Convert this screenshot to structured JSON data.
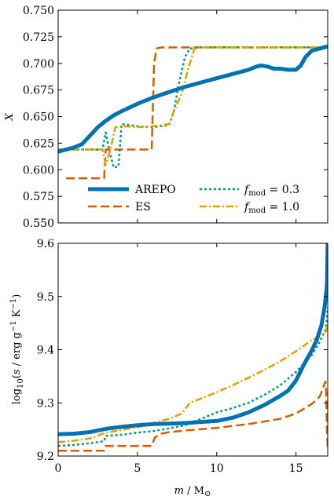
{
  "colors": {
    "arepo": "#0072B2",
    "es": "#D55E00",
    "fmod03": "#009E73",
    "fmod10": "#E69F00",
    "axes": "#000000"
  },
  "chart_data": [
    {
      "type": "line",
      "ylabel": "X",
      "xlim": [
        0,
        17
      ],
      "ylim": [
        0.55,
        0.75
      ],
      "yticks": [
        "0.550",
        "0.575",
        "0.600",
        "0.625",
        "0.650",
        "0.675",
        "0.700",
        "0.725",
        "0.750"
      ],
      "legend_position": "lower-left",
      "series": [
        {
          "name": "AREPO",
          "style": "solid",
          "color": "#0072B2",
          "x": [
            0,
            0.5,
            1,
            1.5,
            2,
            2.5,
            3,
            3.5,
            4,
            5,
            6,
            7,
            8,
            9,
            10,
            11,
            12,
            12.5,
            12.8,
            13.2,
            13.6,
            14,
            14.5,
            15,
            15.3,
            15.6,
            16,
            16.5,
            17
          ],
          "y": [
            0.617,
            0.619,
            0.621,
            0.624,
            0.632,
            0.64,
            0.646,
            0.651,
            0.655,
            0.662,
            0.668,
            0.673,
            0.678,
            0.682,
            0.686,
            0.69,
            0.694,
            0.697,
            0.698,
            0.697,
            0.695,
            0.695,
            0.694,
            0.694,
            0.698,
            0.706,
            0.712,
            0.714,
            0.716
          ]
        },
        {
          "name": "ES",
          "style": "dashed",
          "color": "#D55E00",
          "x": [
            0.5,
            1,
            2,
            2.5,
            2.9,
            3.0,
            3.5,
            4,
            5,
            5.6,
            5.9,
            6.05,
            6.2,
            6.5,
            7,
            8,
            9,
            10,
            12,
            14,
            16,
            17
          ],
          "y": [
            0.592,
            0.592,
            0.592,
            0.592,
            0.592,
            0.619,
            0.619,
            0.619,
            0.619,
            0.619,
            0.619,
            0.7,
            0.714,
            0.715,
            0.715,
            0.715,
            0.715,
            0.715,
            0.715,
            0.715,
            0.715,
            0.715
          ]
        },
        {
          "name": "f_mod = 0.3",
          "style": "dotted",
          "color": "#009E73",
          "x": [
            0,
            1,
            2,
            2.8,
            3.0,
            3.2,
            3.5,
            3.8,
            4.0,
            5,
            6,
            7,
            7.3,
            7.6,
            8,
            8.3,
            9,
            10,
            12,
            14,
            16,
            17
          ],
          "y": [
            0.619,
            0.619,
            0.619,
            0.619,
            0.635,
            0.62,
            0.602,
            0.603,
            0.643,
            0.641,
            0.64,
            0.642,
            0.655,
            0.68,
            0.706,
            0.714,
            0.715,
            0.715,
            0.715,
            0.715,
            0.715,
            0.715
          ]
        },
        {
          "name": "f_mod = 1.0",
          "style": "dashdot",
          "color": "#E69F00",
          "x": [
            0,
            1,
            2,
            2.8,
            3.0,
            3.3,
            3.6,
            4,
            5,
            6,
            7,
            7.3,
            7.8,
            8.2,
            8.6,
            9,
            10,
            12,
            14,
            16,
            17
          ],
          "y": [
            0.619,
            0.619,
            0.619,
            0.619,
            0.605,
            0.619,
            0.64,
            0.641,
            0.64,
            0.641,
            0.643,
            0.655,
            0.672,
            0.695,
            0.714,
            0.715,
            0.715,
            0.715,
            0.715,
            0.715,
            0.715
          ]
        }
      ]
    },
    {
      "type": "line",
      "ylabel": "log10(s / erg g−1 K−1)",
      "xlabel": "m / M⊙",
      "xlim": [
        0,
        17
      ],
      "ylim": [
        9.2,
        9.6
      ],
      "yticks": [
        "9.2",
        "9.3",
        "9.4",
        "9.5",
        "9.6"
      ],
      "xticks": [
        "0",
        "5",
        "10",
        "15"
      ],
      "series": [
        {
          "name": "AREPO",
          "style": "solid",
          "color": "#0072B2",
          "x": [
            0,
            1,
            2,
            3,
            4,
            5,
            6,
            7,
            8,
            9,
            10,
            11,
            12,
            13,
            14,
            14.5,
            15,
            15.5,
            16,
            16.3,
            16.6,
            16.8,
            16.95,
            17
          ],
          "y": [
            9.241,
            9.242,
            9.245,
            9.251,
            9.255,
            9.258,
            9.26,
            9.261,
            9.262,
            9.264,
            9.266,
            9.272,
            9.282,
            9.296,
            9.313,
            9.323,
            9.342,
            9.372,
            9.399,
            9.418,
            9.445,
            9.48,
            9.52,
            9.6
          ]
        },
        {
          "name": "ES",
          "style": "dashed",
          "color": "#D55E00",
          "x": [
            0,
            2.5,
            2.9,
            3.0,
            3.5,
            4,
            5,
            5.9,
            6.1,
            6.5,
            7,
            8,
            10,
            12,
            14,
            15,
            16,
            16.5,
            16.85,
            16.9,
            16.95,
            17
          ],
          "y": [
            9.21,
            9.21,
            9.21,
            9.219,
            9.219,
            9.219,
            9.219,
            9.219,
            9.235,
            9.242,
            9.245,
            9.248,
            9.253,
            9.26,
            9.27,
            9.28,
            9.298,
            9.312,
            9.34,
            9.32,
            9.25,
            9.215
          ]
        },
        {
          "name": "f_mod = 0.3",
          "style": "dotted",
          "color": "#009E73",
          "x": [
            0,
            1,
            2,
            2.9,
            3.0,
            4,
            5,
            6,
            7,
            8,
            9,
            10,
            11,
            12,
            13,
            14,
            15,
            16,
            16.5,
            16.9,
            17
          ],
          "y": [
            9.219,
            9.221,
            9.224,
            9.228,
            9.238,
            9.24,
            9.244,
            9.247,
            9.252,
            9.258,
            9.27,
            9.282,
            9.29,
            9.3,
            9.315,
            9.333,
            9.358,
            9.39,
            9.415,
            9.44,
            9.48
          ]
        },
        {
          "name": "f_mod = 1.0",
          "style": "dashdot",
          "color": "#E69F00",
          "x": [
            0,
            1,
            2,
            3,
            4,
            5,
            6,
            7,
            7.8,
            8.3,
            9,
            10,
            11,
            12,
            13,
            14,
            15,
            16,
            16.5,
            16.9,
            17
          ],
          "y": [
            9.226,
            9.229,
            9.233,
            9.244,
            9.249,
            9.254,
            9.262,
            9.27,
            9.28,
            9.3,
            9.308,
            9.32,
            9.333,
            9.347,
            9.362,
            9.378,
            9.397,
            9.418,
            9.425,
            9.435,
            9.45
          ]
        }
      ]
    }
  ]
}
